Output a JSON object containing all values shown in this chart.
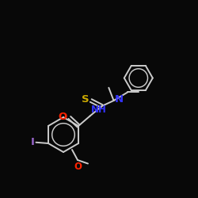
{
  "background_color": "#080808",
  "atom_colors": {
    "S": "#ccaa00",
    "N": "#3333ff",
    "O": "#ff2200",
    "I": "#9966cc",
    "C": "#cccccc",
    "H": "#cccccc"
  },
  "bond_color": "#cccccc",
  "bond_width": 1.4,
  "font_size": 8.5,
  "figsize": [
    2.5,
    2.5
  ],
  "dpi": 100,
  "xlim": [
    0,
    10
  ],
  "ylim": [
    0,
    10
  ]
}
